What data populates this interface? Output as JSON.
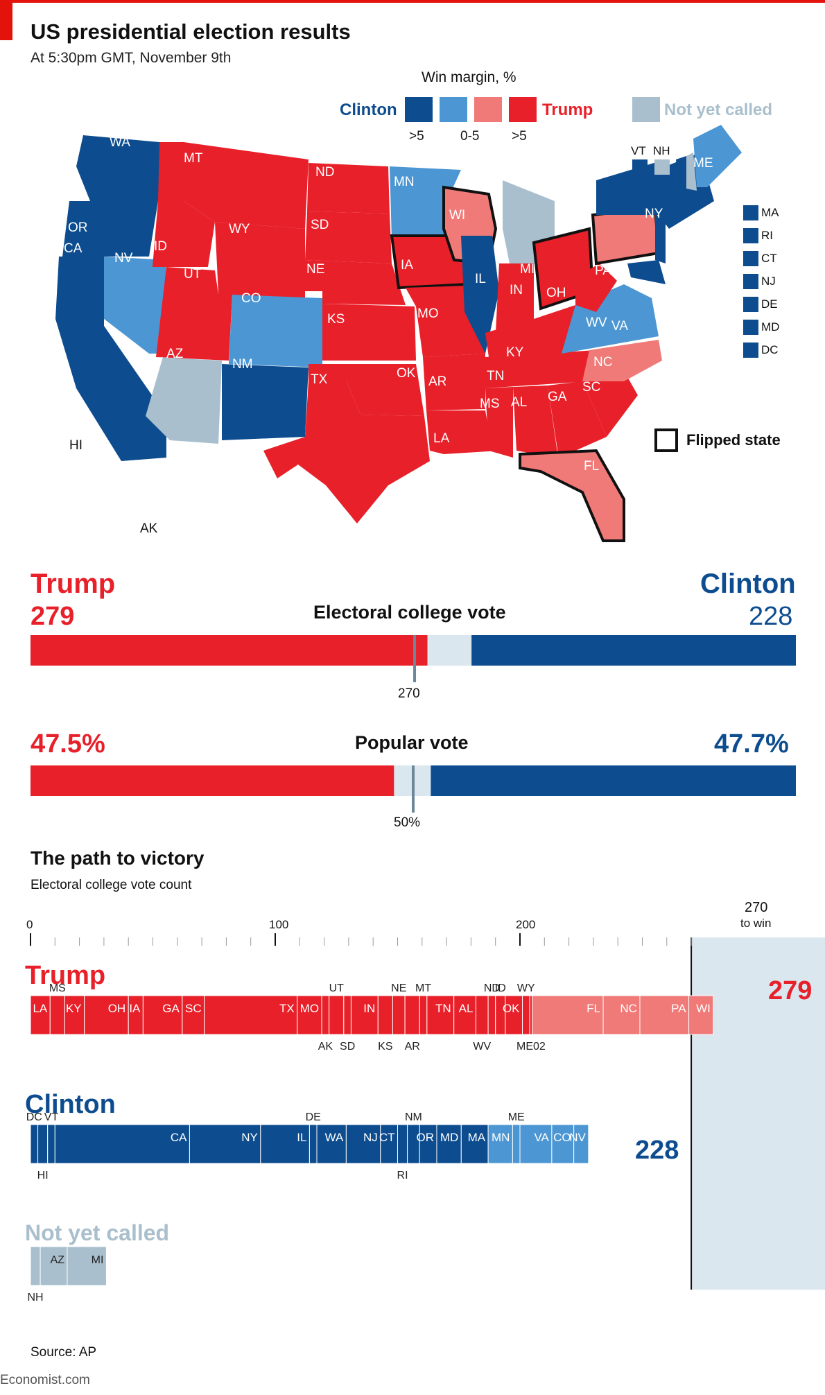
{
  "header": {
    "title": "US presidential election results",
    "subtitle": "At 5:30pm GMT, November 9th"
  },
  "colors": {
    "clinton_strong": "#0d4d8f",
    "clinton_lean": "#4c97d3",
    "trump_lean": "#f07a78",
    "trump_strong": "#e8202a",
    "not_called": "#a9bfcd",
    "accent_red": "#e3120b"
  },
  "legend": {
    "title": "Win margin, %",
    "clinton": "Clinton",
    "trump": "Trump",
    "not_called": "Not yet called",
    "tick_gt5_left": ">5",
    "tick_0_5": "0-5",
    "tick_gt5_right": ">5",
    "flipped": "Flipped state",
    "small_states": [
      "VT",
      "NH"
    ],
    "side_states": [
      "MA",
      "RI",
      "CT",
      "NJ",
      "DE",
      "MD",
      "DC"
    ]
  },
  "map_labels": [
    "WA",
    "OR",
    "CA",
    "NV",
    "ID",
    "MT",
    "WY",
    "UT",
    "AZ",
    "CO",
    "NM",
    "ND",
    "SD",
    "NE",
    "KS",
    "OK",
    "TX",
    "MN",
    "IA",
    "MO",
    "AR",
    "LA",
    "WI",
    "IL",
    "MI",
    "IN",
    "KY",
    "TN",
    "MS",
    "AL",
    "OH",
    "WV",
    "VA",
    "NC",
    "SC",
    "GA",
    "FL",
    "PA",
    "NY",
    "ME",
    "HI",
    "AK"
  ],
  "electoral": {
    "trump_label": "Trump",
    "clinton_label": "Clinton",
    "title": "Electoral college vote",
    "trump_value": "279",
    "clinton_value": "228",
    "threshold_label": "270"
  },
  "popular": {
    "title": "Popular vote",
    "trump_value": "47.5%",
    "clinton_value": "47.7%",
    "threshold_label": "50%"
  },
  "path": {
    "title": "The path to victory",
    "subtitle": "Electoral college vote count",
    "axis_ticks": [
      "0",
      "100",
      "200"
    ],
    "win_label_1": "270",
    "win_label_2": "to win",
    "trump_label": "Trump",
    "trump_total": "279",
    "clinton_label": "Clinton",
    "clinton_total": "228",
    "not_called_label": "Not yet called"
  },
  "source": "Source: AP",
  "footer": "Economist.com",
  "chart_data": [
    {
      "type": "bar",
      "title": "Electoral college vote",
      "series": [
        {
          "name": "Trump",
          "values": [
            279
          ]
        },
        {
          "name": "Not yet called",
          "values": [
            31
          ]
        },
        {
          "name": "Clinton",
          "values": [
            228
          ]
        }
      ],
      "threshold": 270,
      "total": 538
    },
    {
      "type": "bar",
      "title": "Popular vote",
      "series": [
        {
          "name": "Trump",
          "values": [
            47.5
          ]
        },
        {
          "name": "Clinton",
          "values": [
            47.7
          ]
        }
      ],
      "threshold": 50
    },
    {
      "type": "bar",
      "title": "The path to victory",
      "xlabel": "Electoral college vote count",
      "xlim": [
        0,
        270
      ],
      "trump": [
        {
          "state": "LA",
          "ev": 8
        },
        {
          "state": "MS",
          "ev": 6
        },
        {
          "state": "KY",
          "ev": 8
        },
        {
          "state": "OH",
          "ev": 18
        },
        {
          "state": "IA",
          "ev": 6
        },
        {
          "state": "GA",
          "ev": 16
        },
        {
          "state": "SC",
          "ev": 9
        },
        {
          "state": "TX",
          "ev": 38
        },
        {
          "state": "MO",
          "ev": 10
        },
        {
          "state": "AK",
          "ev": 3
        },
        {
          "state": "UT",
          "ev": 6
        },
        {
          "state": "SD",
          "ev": 3
        },
        {
          "state": "IN",
          "ev": 11
        },
        {
          "state": "KS",
          "ev": 6
        },
        {
          "state": "NE",
          "ev": 5
        },
        {
          "state": "AR",
          "ev": 6
        },
        {
          "state": "MT",
          "ev": 3
        },
        {
          "state": "TN",
          "ev": 11
        },
        {
          "state": "AL",
          "ev": 9
        },
        {
          "state": "WV",
          "ev": 5
        },
        {
          "state": "ND",
          "ev": 3
        },
        {
          "state": "ID",
          "ev": 4
        },
        {
          "state": "OK",
          "ev": 7
        },
        {
          "state": "WY",
          "ev": 3
        },
        {
          "state": "ME02",
          "ev": 1
        },
        {
          "state": "FL",
          "ev": 29
        },
        {
          "state": "NC",
          "ev": 15
        },
        {
          "state": "PA",
          "ev": 20
        },
        {
          "state": "WI",
          "ev": 10
        }
      ],
      "clinton": [
        {
          "state": "DC",
          "ev": 3
        },
        {
          "state": "HI",
          "ev": 4
        },
        {
          "state": "VT",
          "ev": 3
        },
        {
          "state": "CA",
          "ev": 55
        },
        {
          "state": "NY",
          "ev": 29
        },
        {
          "state": "IL",
          "ev": 20
        },
        {
          "state": "DE",
          "ev": 3
        },
        {
          "state": "WA",
          "ev": 12
        },
        {
          "state": "NJ",
          "ev": 14
        },
        {
          "state": "CT",
          "ev": 7
        },
        {
          "state": "RI",
          "ev": 4
        },
        {
          "state": "NM",
          "ev": 5
        },
        {
          "state": "OR",
          "ev": 7
        },
        {
          "state": "MD",
          "ev": 10
        },
        {
          "state": "MA",
          "ev": 11
        },
        {
          "state": "MN",
          "ev": 10
        },
        {
          "state": "ME",
          "ev": 3
        },
        {
          "state": "VA",
          "ev": 13
        },
        {
          "state": "CO",
          "ev": 9
        },
        {
          "state": "NV",
          "ev": 6
        }
      ],
      "not_called": [
        {
          "state": "NH",
          "ev": 4
        },
        {
          "state": "AZ",
          "ev": 11
        },
        {
          "state": "MI",
          "ev": 16
        }
      ]
    }
  ]
}
